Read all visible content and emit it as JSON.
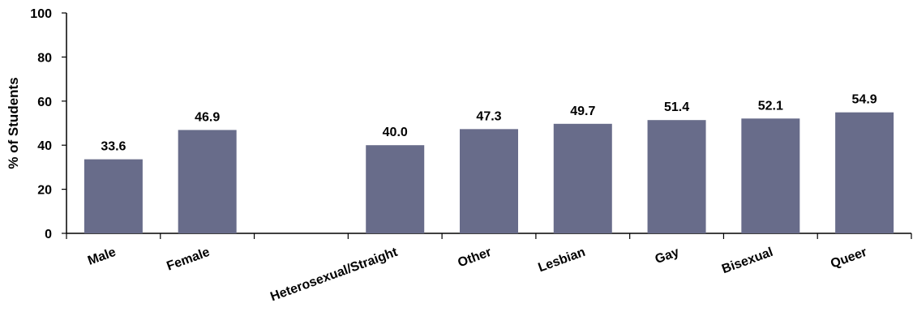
{
  "chart_data": {
    "type": "bar",
    "categories": [
      "Male",
      "Female",
      "",
      "Heterosexual/Straight",
      "Other",
      "Lesbian",
      "Gay",
      "Bisexual",
      "Queer"
    ],
    "values": [
      33.6,
      46.9,
      null,
      40.0,
      47.3,
      49.7,
      51.4,
      52.1,
      54.9
    ],
    "data_labels": [
      "33.6",
      "46.9",
      "",
      "40.0",
      "47.3",
      "49.7",
      "51.4",
      "52.1",
      "54.9"
    ],
    "ylabel": "% of Students",
    "xlabel": "",
    "ylim": [
      0,
      100
    ],
    "yticks": [
      0,
      20,
      40,
      60,
      80,
      100
    ],
    "bar_color": "#686c8a",
    "grid": false
  }
}
